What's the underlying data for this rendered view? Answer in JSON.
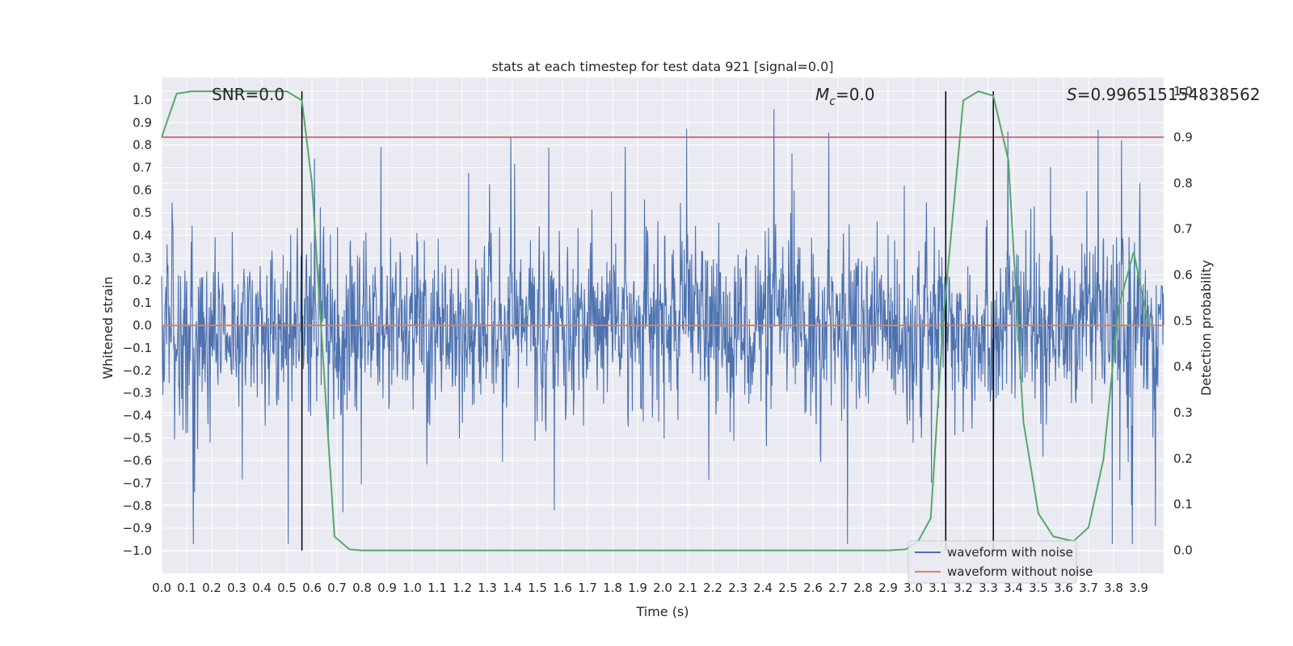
{
  "chart_data": {
    "type": "line",
    "title": "stats at each timestep for test data 921 [signal=0.0]",
    "xlabel": "Time (s)",
    "ylabel": "Whitened strain",
    "y2label": "Detection probability",
    "xlim": [
      0.0,
      4.0
    ],
    "ylim": [
      -1.1,
      1.1
    ],
    "y2lim": [
      -0.05,
      1.03
    ],
    "grid": true,
    "x_ticks": [
      "0.0",
      "0.1",
      "0.2",
      "0.3",
      "0.4",
      "0.5",
      "0.6",
      "0.7",
      "0.8",
      "0.9",
      "1.0",
      "1.1",
      "1.2",
      "1.3",
      "1.4",
      "1.5",
      "1.6",
      "1.7",
      "1.8",
      "1.9",
      "2.0",
      "2.1",
      "2.2",
      "2.3",
      "2.4",
      "2.5",
      "2.6",
      "2.7",
      "2.8",
      "2.9",
      "3.0",
      "3.1",
      "3.2",
      "3.3",
      "3.4",
      "3.5",
      "3.6",
      "3.7",
      "3.8",
      "3.9"
    ],
    "y_ticks": [
      "1.0",
      "0.9",
      "0.8",
      "0.7",
      "0.6",
      "0.5",
      "0.4",
      "0.3",
      "0.2",
      "0.1",
      "0.0",
      "−0.1",
      "−0.2",
      "−0.3",
      "−0.4",
      "−0.5",
      "−0.6",
      "−0.7",
      "−0.8",
      "−0.9",
      "−1.0"
    ],
    "y2_ticks": [
      "1.0",
      "0.9",
      "0.8",
      "0.7",
      "0.6",
      "0.5",
      "0.4",
      "0.3",
      "0.2",
      "0.1",
      "0.0"
    ],
    "annotations": {
      "snr": "SNR=0.0",
      "mc_symbol": "M",
      "mc_sub": "c",
      "mc_value": "=0.0",
      "s_symbol": "S",
      "s_value": "=0.996515154838562"
    },
    "legend": {
      "placement": "lower-right",
      "entries": [
        {
          "label": "waveform with noise",
          "color": "#4c72b0"
        },
        {
          "label": "waveform without noise",
          "color": "#dd8452"
        }
      ]
    },
    "series": [
      {
        "name": "waveform with noise",
        "color": "#4c72b0",
        "description": "dense whitened noise strain, amplitude envelope about ±0.5 with peaks to ±0.95"
      },
      {
        "name": "waveform without noise",
        "color": "#dd8452",
        "constant": 0.0
      },
      {
        "color": "#55a868",
        "axis": "right",
        "x": [
          0.0,
          0.06,
          0.12,
          0.2,
          0.3,
          0.4,
          0.5,
          0.56,
          0.6,
          0.69,
          0.75,
          0.8,
          0.9,
          1.0,
          1.5,
          2.0,
          2.5,
          2.9,
          2.97,
          3.02,
          3.07,
          3.12,
          3.2,
          3.26,
          3.32,
          3.38,
          3.44,
          3.5,
          3.56,
          3.64,
          3.7,
          3.76,
          3.82,
          3.88,
          3.94
        ],
        "values": [
          0.9,
          0.995,
          1.0,
          1.0,
          1.0,
          1.0,
          1.0,
          0.98,
          0.8,
          0.03,
          0.002,
          0.0,
          0.0,
          0.0,
          0.0,
          0.0,
          0.0,
          0.0,
          0.002,
          0.02,
          0.07,
          0.5,
          0.98,
          1.0,
          0.99,
          0.85,
          0.28,
          0.08,
          0.03,
          0.02,
          0.05,
          0.2,
          0.53,
          0.65,
          0.49
        ]
      },
      {
        "name": "",
        "color": "#c44e52",
        "axis": "right",
        "constant": 0.9
      }
    ],
    "vertical_lines_x": [
      0.56,
      3.13,
      3.32
    ]
  }
}
